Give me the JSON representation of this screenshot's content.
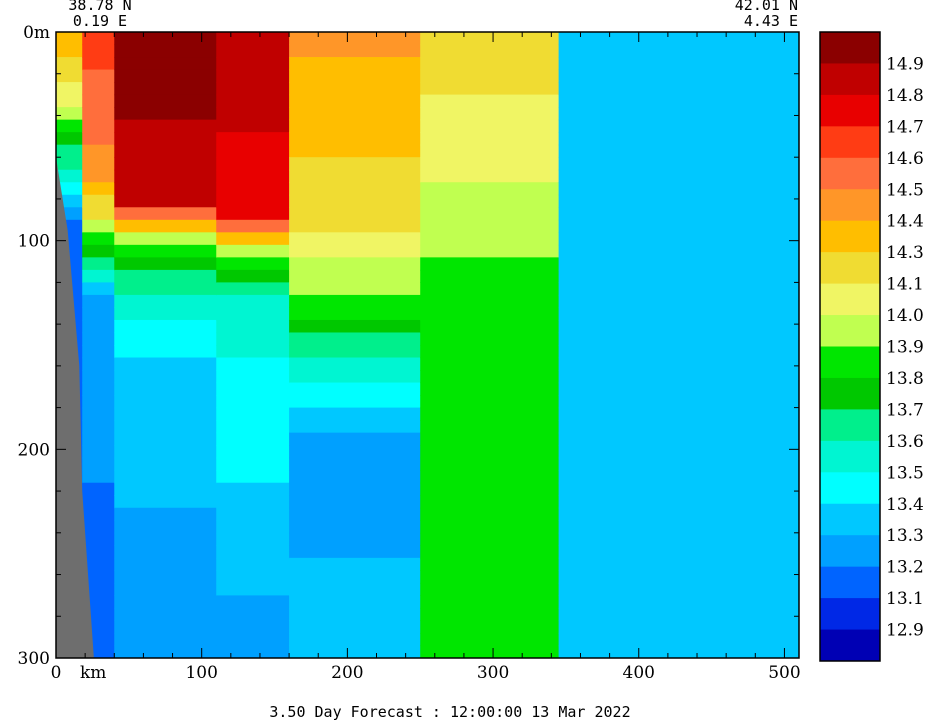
{
  "chart_data": {
    "type": "heatmap",
    "title": "3.50 Day Forecast : 12:00:00  13 Mar 2022",
    "start_point": {
      "lat": "38.78 N",
      "lon": "0.19 E"
    },
    "end_point": {
      "lat": "42.01 N",
      "lon": "4.43 E"
    },
    "xlabel": "km",
    "x_range": [
      0,
      510
    ],
    "x_ticks": [
      0,
      100,
      200,
      300,
      400,
      500
    ],
    "x_tick_labels": [
      "0",
      "100",
      "200",
      "300",
      "400",
      "500"
    ],
    "y_range": [
      0,
      300
    ],
    "y_inverted": true,
    "y_ticks": [
      0,
      100,
      200,
      300
    ],
    "y_tick_labels": [
      "0m",
      "100",
      "200",
      "300"
    ],
    "colorbar": {
      "labels": [
        "14.9",
        "14.8",
        "14.7",
        "14.6",
        "14.5",
        "14.4",
        "14.3",
        "14.1",
        "14.0",
        "13.9",
        "13.8",
        "13.7",
        "13.6",
        "13.5",
        "13.4",
        "13.3",
        "13.2",
        "13.1",
        "12.9"
      ],
      "colors": [
        "#8b0000",
        "#c00000",
        "#e80000",
        "#ff3c14",
        "#ff6e3c",
        "#ff9628",
        "#ffbe00",
        "#f0dc32",
        "#f0f564",
        "#c0ff50",
        "#00e600",
        "#00c800",
        "#00ef8c",
        "#00f5d2",
        "#00ffff",
        "#00c8ff",
        "#00a0ff",
        "#0064ff",
        "#0028e6",
        "#0000b4"
      ]
    },
    "land_mask_color": "#6e6e6e",
    "sections": [
      {
        "x_range": [
          0,
          18
        ],
        "surface_temp": 14.3,
        "profile": [
          [
            0,
            14.3
          ],
          [
            40,
            13.9
          ],
          [
            80,
            13.3
          ],
          [
            100,
            13.0
          ]
        ]
      },
      {
        "x_range": [
          18,
          40
        ],
        "surface_temp": 14.6,
        "profile": [
          [
            0,
            14.6
          ],
          [
            70,
            14.4
          ],
          [
            100,
            13.8
          ],
          [
            130,
            13.2
          ],
          [
            300,
            13.1
          ]
        ]
      },
      {
        "x_range": [
          40,
          110
        ],
        "surface_temp": 14.9,
        "profile": [
          [
            0,
            14.9
          ],
          [
            80,
            14.8
          ],
          [
            100,
            13.9
          ],
          [
            120,
            13.6
          ],
          [
            160,
            13.3
          ],
          [
            300,
            13.2
          ]
        ]
      },
      {
        "x_range": [
          110,
          160
        ],
        "surface_temp": 14.8,
        "profile": [
          [
            0,
            14.8
          ],
          [
            90,
            14.7
          ],
          [
            105,
            13.9
          ],
          [
            130,
            13.5
          ],
          [
            300,
            13.2
          ]
        ]
      },
      {
        "x_range": [
          160,
          250
        ],
        "surface_temp": 14.4,
        "profile": [
          [
            0,
            14.4
          ],
          [
            90,
            14.1
          ],
          [
            130,
            13.8
          ],
          [
            170,
            13.4
          ],
          [
            200,
            13.2
          ],
          [
            300,
            13.3
          ]
        ]
      },
      {
        "x_range": [
          250,
          345
        ],
        "surface_temp": 14.1,
        "profile": [
          [
            0,
            14.1
          ],
          [
            60,
            14.0
          ],
          [
            120,
            13.8
          ],
          [
            300,
            13.8
          ]
        ]
      },
      {
        "x_range": [
          345,
          510
        ],
        "surface_temp": 13.3,
        "profile": [
          [
            0,
            13.3
          ],
          [
            300,
            13.3
          ]
        ]
      }
    ]
  }
}
